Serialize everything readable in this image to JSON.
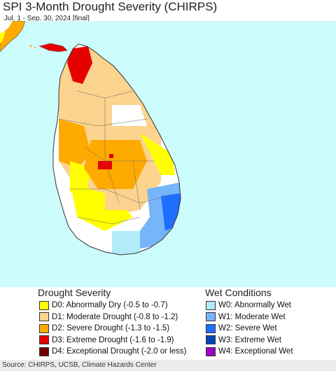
{
  "title": "SPI 3-Month Drought Severity (CHIRPS)",
  "subtitle": "Jul. 1 - Sep. 30, 2024 [final]",
  "colors": {
    "ocean": "#ccfcfc",
    "land_normal": "#ffffff",
    "border": "#555555",
    "D0": "#ffff00",
    "D1": "#fcd38f",
    "D2": "#ffaa00",
    "D3": "#e60000",
    "D4": "#730000",
    "W0": "#b2ebfa",
    "W1": "#77b5fa",
    "W2": "#1e6eff",
    "W3": "#0046b4",
    "W4": "#a000c8"
  },
  "legend": {
    "drought_title": "Drought Severity",
    "wet_title": "Wet Conditions",
    "drought": [
      {
        "code": "D0",
        "label": "D0: Abnormally Dry (-0.5 to -0.7)"
      },
      {
        "code": "D1",
        "label": "D1: Moderate Drought (-0.8 to -1.2)"
      },
      {
        "code": "D2",
        "label": "D2: Severe Drought (-1.3 to -1.5)"
      },
      {
        "code": "D3",
        "label": "D3: Extreme Drought (-1.6 to -1.9)"
      },
      {
        "code": "D4",
        "label": "D4: Exceptional Drought (-2.0 or less)"
      }
    ],
    "wet": [
      {
        "code": "W0",
        "label": "W0: Abnormally Wet"
      },
      {
        "code": "W1",
        "label": "W1: Moderate Wet"
      },
      {
        "code": "W2",
        "label": "W2: Severe Wet"
      },
      {
        "code": "W3",
        "label": "W3: Extreme Wet"
      },
      {
        "code": "W4",
        "label": "W4: Exceptional Wet"
      }
    ]
  },
  "footer": "Source: CHIRPS, UCSB, Climate Hazards Center"
}
